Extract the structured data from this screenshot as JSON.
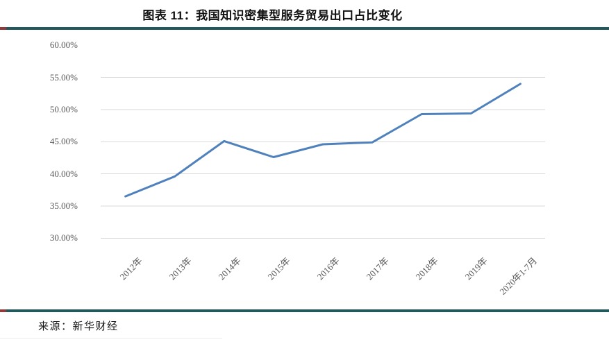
{
  "figure": {
    "title": "图表 11：我国知识密集型服务贸易出口占比变化",
    "source": "来源：新华财经"
  },
  "chart_data": {
    "type": "line",
    "title": "图表 11：我国知识密集型服务贸易出口占比变化",
    "categories": [
      "2012年",
      "2013年",
      "2014年",
      "2015年",
      "2016年",
      "2017年",
      "2018年",
      "2019年",
      "2020年1-7月"
    ],
    "values": [
      36.5,
      39.6,
      45.1,
      42.6,
      44.6,
      44.9,
      49.3,
      49.4,
      54.0
    ],
    "unit": "%",
    "y_ticks": [
      {
        "label": "60.00%",
        "value": 60
      },
      {
        "label": "55.00%",
        "value": 55
      },
      {
        "label": "50.00%",
        "value": 50
      },
      {
        "label": "45.00%",
        "value": 45
      },
      {
        "label": "40.00%",
        "value": 40
      },
      {
        "label": "35.00%",
        "value": 35
      },
      {
        "label": "30.00%",
        "value": 30
      }
    ],
    "ylim": [
      30,
      60
    ],
    "xlabel": "",
    "ylabel": "",
    "grid": "horizontal",
    "legend": "none"
  },
  "colors": {
    "series_line": "#4F81BD",
    "gridline": "#D9D9D9",
    "tick_text": "#595959",
    "rule_teal": "#24595C",
    "rule_red_tip": "#8F3B3B"
  }
}
